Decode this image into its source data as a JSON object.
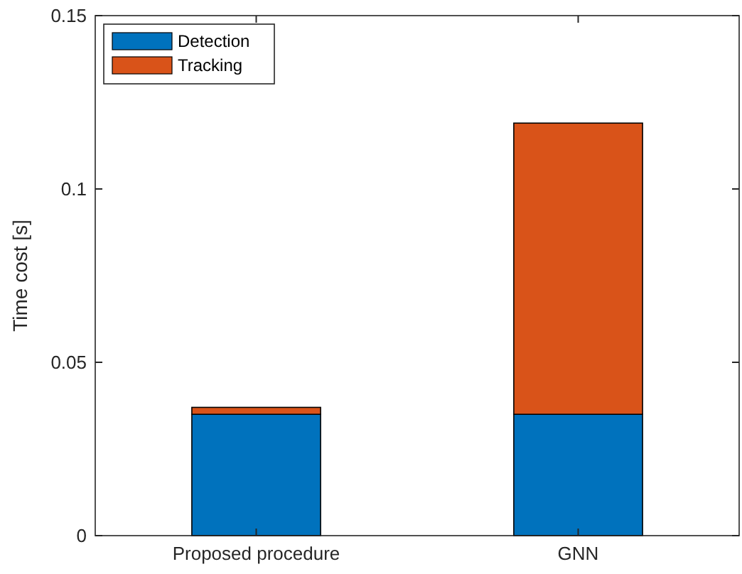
{
  "chart_data": {
    "type": "bar",
    "stacked": true,
    "ylabel": "Time cost [s]",
    "categories": [
      "Proposed procedure",
      "GNN"
    ],
    "series": [
      {
        "name": "Detection",
        "color": "#0072bd",
        "values": [
          0.035,
          0.035
        ]
      },
      {
        "name": "Tracking",
        "color": "#d95319",
        "values": [
          0.002,
          0.084
        ]
      }
    ],
    "ylim": [
      0,
      0.15
    ],
    "yticks": [
      0,
      0.05,
      0.1,
      0.15
    ],
    "legend": "top left",
    "grid": false
  }
}
